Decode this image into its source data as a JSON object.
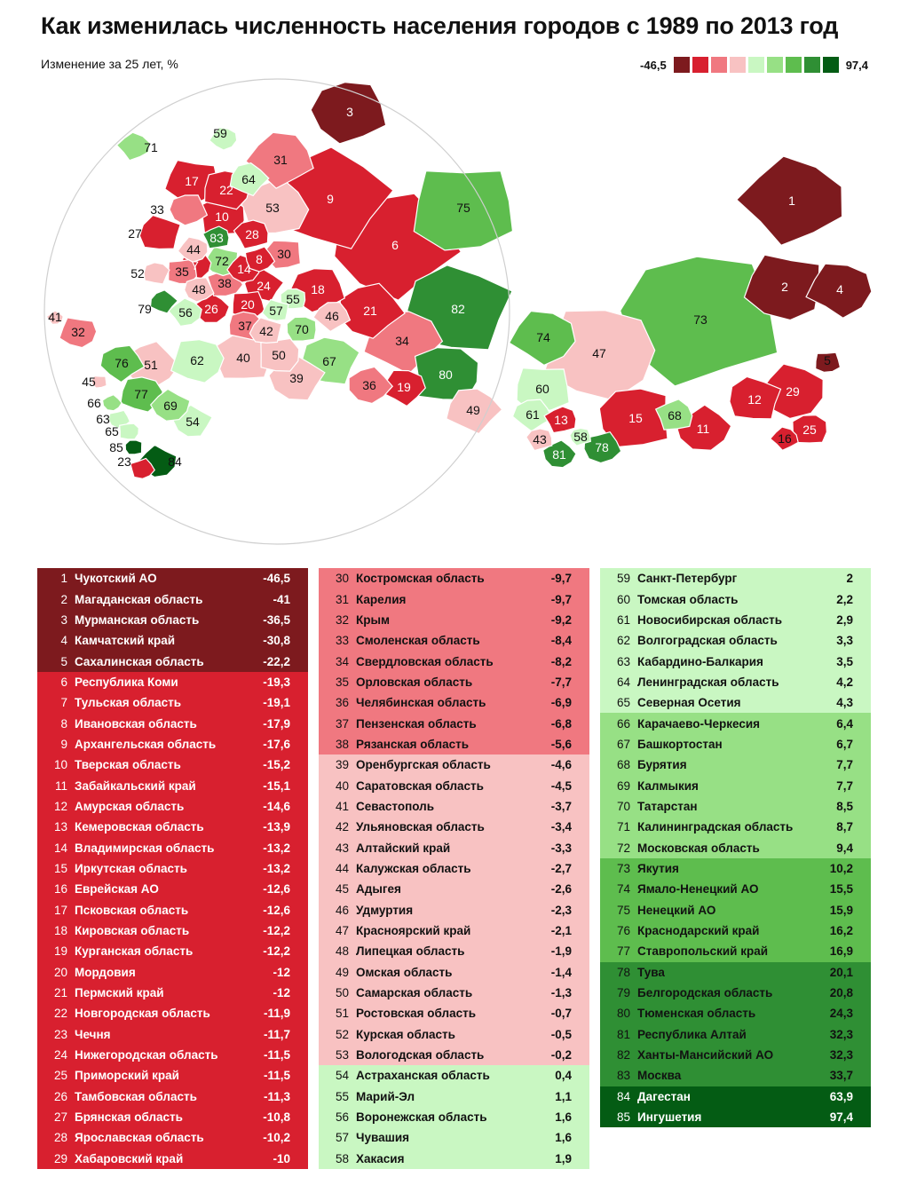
{
  "title": "Как изменилась численность населения городов с 1989 по 2013 год",
  "subtitle": "Изменение за 25 лет, %",
  "legend": {
    "min": "-46,5",
    "max": "97,4",
    "colors": [
      "#7d1a1e",
      "#d8202f",
      "#f07880",
      "#f8c2c2",
      "#c9f7c2",
      "#97e085",
      "#5ebd4e",
      "#2f8f34",
      "#045c14"
    ]
  },
  "colors": {
    "b1": "#7d1a1e",
    "b2": "#d8202f",
    "b3": "#f07880",
    "b4": "#f8c2c2",
    "b5": "#c9f7c2",
    "b6": "#97e085",
    "b7": "#5ebd4e",
    "b8": "#2f8f34",
    "b9": "#045c14"
  },
  "regions": [
    {
      "n": "1",
      "name": "Чукотский АО",
      "value": "-46,5",
      "band": "b1"
    },
    {
      "n": "2",
      "name": "Магаданская область",
      "value": "-41",
      "band": "b1"
    },
    {
      "n": "3",
      "name": "Мурманская область",
      "value": "-36,5",
      "band": "b1"
    },
    {
      "n": "4",
      "name": "Камчатский край",
      "value": "-30,8",
      "band": "b1"
    },
    {
      "n": "5",
      "name": "Сахалинская область",
      "value": "-22,2",
      "band": "b1"
    },
    {
      "n": "6",
      "name": "Республика Коми",
      "value": "-19,3",
      "band": "b2"
    },
    {
      "n": "7",
      "name": "Тульская область",
      "value": "-19,1",
      "band": "b2"
    },
    {
      "n": "8",
      "name": "Ивановская область",
      "value": "-17,9",
      "band": "b2"
    },
    {
      "n": "9",
      "name": "Архангельская область",
      "value": "-17,6",
      "band": "b2"
    },
    {
      "n": "10",
      "name": "Тверская область",
      "value": "-15,2",
      "band": "b2"
    },
    {
      "n": "11",
      "name": "Забайкальский край",
      "value": "-15,1",
      "band": "b2"
    },
    {
      "n": "12",
      "name": "Амурская область",
      "value": "-14,6",
      "band": "b2"
    },
    {
      "n": "13",
      "name": "Кемеровская область",
      "value": "-13,9",
      "band": "b2"
    },
    {
      "n": "14",
      "name": "Владимирская область",
      "value": "-13,2",
      "band": "b2"
    },
    {
      "n": "15",
      "name": "Иркутская область",
      "value": "-13,2",
      "band": "b2"
    },
    {
      "n": "16",
      "name": "Еврейская АО",
      "value": "-12,6",
      "band": "b2"
    },
    {
      "n": "17",
      "name": "Псковская область",
      "value": "-12,6",
      "band": "b2"
    },
    {
      "n": "18",
      "name": "Кировская область",
      "value": "-12,2",
      "band": "b2"
    },
    {
      "n": "19",
      "name": "Курганская область",
      "value": "-12,2",
      "band": "b2"
    },
    {
      "n": "20",
      "name": "Мордовия",
      "value": "-12",
      "band": "b2"
    },
    {
      "n": "21",
      "name": "Пермский край",
      "value": "-12",
      "band": "b2"
    },
    {
      "n": "22",
      "name": "Новгородская область",
      "value": "-11,9",
      "band": "b2"
    },
    {
      "n": "23",
      "name": "Чечня",
      "value": "-11,7",
      "band": "b2"
    },
    {
      "n": "24",
      "name": "Нижегородская область",
      "value": "-11,5",
      "band": "b2"
    },
    {
      "n": "25",
      "name": "Приморский край",
      "value": "-11,5",
      "band": "b2"
    },
    {
      "n": "26",
      "name": "Тамбовская область",
      "value": "-11,3",
      "band": "b2"
    },
    {
      "n": "27",
      "name": "Брянская область",
      "value": "-10,8",
      "band": "b2"
    },
    {
      "n": "28",
      "name": "Ярославская область",
      "value": "-10,2",
      "band": "b2"
    },
    {
      "n": "29",
      "name": "Хабаровский край",
      "value": "-10",
      "band": "b2"
    },
    {
      "n": "30",
      "name": "Костромская область",
      "value": "-9,7",
      "band": "b3"
    },
    {
      "n": "31",
      "name": "Карелия",
      "value": "-9,7",
      "band": "b3"
    },
    {
      "n": "32",
      "name": "Крым",
      "value": "-9,2",
      "band": "b3"
    },
    {
      "n": "33",
      "name": "Смоленская область",
      "value": "-8,4",
      "band": "b3"
    },
    {
      "n": "34",
      "name": "Свердловская область",
      "value": "-8,2",
      "band": "b3"
    },
    {
      "n": "35",
      "name": "Орловская область",
      "value": "-7,7",
      "band": "b3"
    },
    {
      "n": "36",
      "name": "Челябинская область",
      "value": "-6,9",
      "band": "b3"
    },
    {
      "n": "37",
      "name": "Пензенская область",
      "value": "-6,8",
      "band": "b3"
    },
    {
      "n": "38",
      "name": "Рязанская область",
      "value": "-5,6",
      "band": "b3"
    },
    {
      "n": "39",
      "name": "Оренбургская область",
      "value": "-4,6",
      "band": "b4"
    },
    {
      "n": "40",
      "name": "Саратовская область",
      "value": "-4,5",
      "band": "b4"
    },
    {
      "n": "41",
      "name": "Севастополь",
      "value": "-3,7",
      "band": "b4"
    },
    {
      "n": "42",
      "name": "Ульяновская область",
      "value": "-3,4",
      "band": "b4"
    },
    {
      "n": "43",
      "name": "Алтайский край",
      "value": "-3,3",
      "band": "b4"
    },
    {
      "n": "44",
      "name": "Калужская область",
      "value": "-2,7",
      "band": "b4"
    },
    {
      "n": "45",
      "name": "Адыгея",
      "value": "-2,6",
      "band": "b4"
    },
    {
      "n": "46",
      "name": "Удмуртия",
      "value": "-2,3",
      "band": "b4"
    },
    {
      "n": "47",
      "name": "Красноярский край",
      "value": "-2,1",
      "band": "b4"
    },
    {
      "n": "48",
      "name": "Липецкая область",
      "value": "-1,9",
      "band": "b4"
    },
    {
      "n": "49",
      "name": "Омская область",
      "value": "-1,4",
      "band": "b4"
    },
    {
      "n": "50",
      "name": "Самарская область",
      "value": "-1,3",
      "band": "b4"
    },
    {
      "n": "51",
      "name": "Ростовская область",
      "value": "-0,7",
      "band": "b4"
    },
    {
      "n": "52",
      "name": "Курская область",
      "value": "-0,5",
      "band": "b4"
    },
    {
      "n": "53",
      "name": "Вологодская область",
      "value": "-0,2",
      "band": "b4"
    },
    {
      "n": "54",
      "name": "Астраханская область",
      "value": "0,4",
      "band": "b5"
    },
    {
      "n": "55",
      "name": "Марий-Эл",
      "value": "1,1",
      "band": "b5"
    },
    {
      "n": "56",
      "name": "Воронежская область",
      "value": "1,6",
      "band": "b5"
    },
    {
      "n": "57",
      "name": "Чувашия",
      "value": "1,6",
      "band": "b5"
    },
    {
      "n": "58",
      "name": "Хакасия",
      "value": "1,9",
      "band": "b5"
    },
    {
      "n": "59",
      "name": "Санкт-Петербург",
      "value": "2",
      "band": "b5"
    },
    {
      "n": "60",
      "name": "Томская область",
      "value": "2,2",
      "band": "b5"
    },
    {
      "n": "61",
      "name": "Новосибирская область",
      "value": "2,9",
      "band": "b5"
    },
    {
      "n": "62",
      "name": "Волгоградская область",
      "value": "3,3",
      "band": "b5"
    },
    {
      "n": "63",
      "name": "Кабардино-Балкария",
      "value": "3,5",
      "band": "b5"
    },
    {
      "n": "64",
      "name": "Ленинградская область",
      "value": "4,2",
      "band": "b5"
    },
    {
      "n": "65",
      "name": "Северная Осетия",
      "value": "4,3",
      "band": "b5"
    },
    {
      "n": "66",
      "name": "Карачаево-Черкесия",
      "value": "6,4",
      "band": "b6"
    },
    {
      "n": "67",
      "name": "Башкортостан",
      "value": "6,7",
      "band": "b6"
    },
    {
      "n": "68",
      "name": "Бурятия",
      "value": "7,7",
      "band": "b6"
    },
    {
      "n": "69",
      "name": "Калмыкия",
      "value": "7,7",
      "band": "b6"
    },
    {
      "n": "70",
      "name": "Татарстан",
      "value": "8,5",
      "band": "b6"
    },
    {
      "n": "71",
      "name": "Калининградская область",
      "value": "8,7",
      "band": "b6"
    },
    {
      "n": "72",
      "name": "Московская область",
      "value": "9,4",
      "band": "b6"
    },
    {
      "n": "73",
      "name": "Якутия",
      "value": "10,2",
      "band": "b7"
    },
    {
      "n": "74",
      "name": "Ямало-Ненецкий АО",
      "value": "15,5",
      "band": "b7"
    },
    {
      "n": "75",
      "name": "Ненецкий АО",
      "value": "15,9",
      "band": "b7"
    },
    {
      "n": "76",
      "name": "Краснодарский край",
      "value": "16,2",
      "band": "b7"
    },
    {
      "n": "77",
      "name": "Ставропольский край",
      "value": "16,9",
      "band": "b7"
    },
    {
      "n": "78",
      "name": "Тува",
      "value": "20,1",
      "band": "b8"
    },
    {
      "n": "79",
      "name": "Белгородская область",
      "value": "20,8",
      "band": "b8"
    },
    {
      "n": "80",
      "name": "Тюменская область",
      "value": "24,3",
      "band": "b8"
    },
    {
      "n": "81",
      "name": "Республика Алтай",
      "value": "32,3",
      "band": "b8"
    },
    {
      "n": "82",
      "name": "Ханты-Мансийский АО",
      "value": "32,3",
      "band": "b8"
    },
    {
      "n": "83",
      "name": "Москва",
      "value": "33,7",
      "band": "b8"
    },
    {
      "n": "84",
      "name": "Дагестан",
      "value": "63,9",
      "band": "b9"
    },
    {
      "n": "85",
      "name": "Ингушетия",
      "value": "97,4",
      "band": "b9"
    }
  ]
}
